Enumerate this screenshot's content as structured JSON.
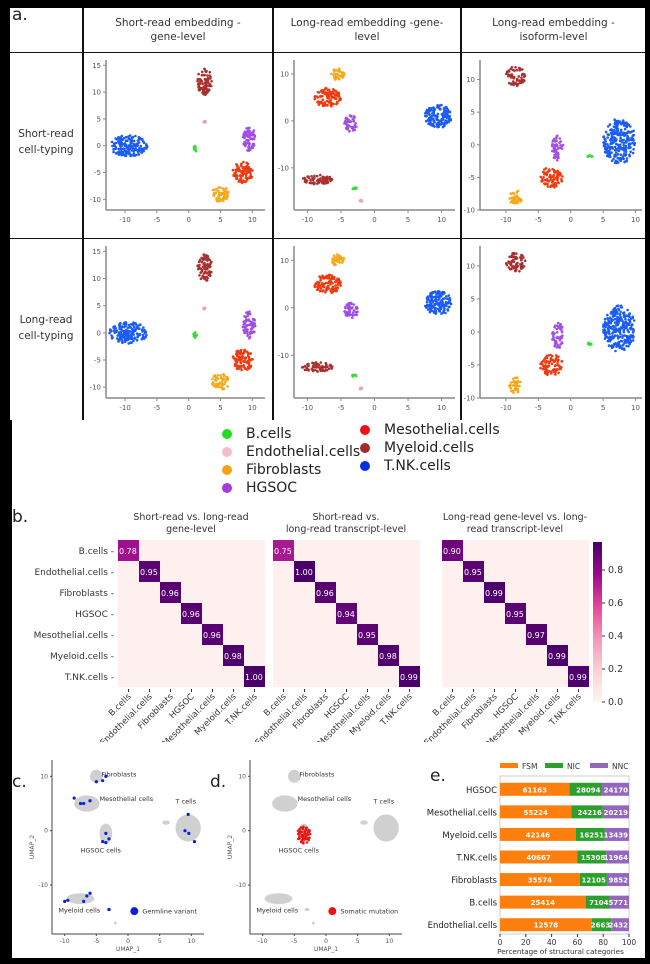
{
  "figure": {
    "panel_labels": {
      "a": "a.",
      "b": "b.",
      "c": "c.",
      "d": "d.",
      "e": "e."
    }
  },
  "section_a": {
    "column_headers": [
      {
        "line1": "Short-read embedding -",
        "line2": "gene-level"
      },
      {
        "line1": "Long-read embedding -gene-",
        "line2": "level"
      },
      {
        "line1": "Long-read embedding -",
        "line2": "isoform-level"
      }
    ],
    "row_headers": [
      {
        "line1": "Short-read",
        "line2": "cell-typing"
      },
      {
        "line1": "Long-read",
        "line2": "cell-typing"
      }
    ],
    "x_ticks": [
      "-10",
      "-5",
      "0",
      "5",
      "10"
    ],
    "y_ticks_col1": [
      "15",
      "10",
      "5",
      "0",
      "-5",
      "-10"
    ],
    "y_ticks_col2": [
      "10",
      "0",
      "-10"
    ],
    "y_ticks_col3": [
      "10",
      "5",
      "0",
      "-5",
      "-10"
    ],
    "legend": [
      {
        "label": "B.cells",
        "color": "#22dd22"
      },
      {
        "label": "Endothelial.cells",
        "color": "#f4bcc6"
      },
      {
        "label": "Fibroblasts",
        "color": "#f5a312"
      },
      {
        "label": "HGSOC",
        "color": "#a43ae0"
      },
      {
        "label": "Mesothelial.cells",
        "color": "#ee1111"
      },
      {
        "label": "Myeloid.cells",
        "color": "#a52a2a"
      },
      {
        "label": "T.NK.cells",
        "color": "#0a2ee8"
      }
    ]
  },
  "chart_data": [
    {
      "type": "scatter",
      "title": "Short-read embedding - gene-level / Short-read cell-typing",
      "xlim": [
        -13,
        12
      ],
      "ylim": [
        -12,
        16
      ],
      "clusters": [
        {
          "name": "T.NK.cells",
          "cx": -9.5,
          "cy": 0,
          "rx": 3,
          "ry": 2
        },
        {
          "name": "Myeloid.cells",
          "cx": 2.5,
          "cy": 12,
          "rx": 1.2,
          "ry": 2.5
        },
        {
          "name": "HGSOC",
          "cx": 9.5,
          "cy": 1.5,
          "rx": 1,
          "ry": 2.5
        },
        {
          "name": "Mesothelial.cells",
          "cx": 8.5,
          "cy": -5,
          "rx": 1.6,
          "ry": 2
        },
        {
          "name": "Fibroblasts",
          "cx": 5,
          "cy": -9,
          "rx": 1.4,
          "ry": 1.5
        },
        {
          "name": "B.cells",
          "cx": 1,
          "cy": -0.5,
          "rx": 0.3,
          "ry": 0.6
        },
        {
          "name": "Endothelial.cells",
          "cx": 2.5,
          "cy": 4.5,
          "rx": 0.2,
          "ry": 0.2
        }
      ]
    },
    {
      "type": "scatter",
      "title": "Long-read embedding - gene-level / Short-read cell-typing",
      "xlim": [
        -12,
        12
      ],
      "ylim": [
        -19,
        13
      ],
      "clusters": [
        {
          "name": "T.NK.cells",
          "cx": 9.5,
          "cy": 1,
          "rx": 2,
          "ry": 2.5
        },
        {
          "name": "Fibroblasts",
          "cx": -5.5,
          "cy": 10,
          "rx": 1,
          "ry": 1.3
        },
        {
          "name": "Mesothelial.cells",
          "cx": -7,
          "cy": 5,
          "rx": 2,
          "ry": 2
        },
        {
          "name": "HGSOC",
          "cx": -3.5,
          "cy": -0.5,
          "rx": 1,
          "ry": 1.8
        },
        {
          "name": "Myeloid.cells",
          "cx": -8.5,
          "cy": -12.5,
          "rx": 2.3,
          "ry": 1
        },
        {
          "name": "B.cells",
          "cx": -3,
          "cy": -14.3,
          "rx": 0.4,
          "ry": 0.3
        },
        {
          "name": "Endothelial.cells",
          "cx": -2,
          "cy": -17,
          "rx": 0.2,
          "ry": 0.2
        }
      ]
    },
    {
      "type": "scatter",
      "title": "Long-read embedding - isoform-level / Short-read cell-typing",
      "xlim": [
        -14,
        11
      ],
      "ylim": [
        -10,
        13
      ],
      "clusters": [
        {
          "name": "T.NK.cells",
          "cx": 7.5,
          "cy": 0.5,
          "rx": 2.5,
          "ry": 3.5
        },
        {
          "name": "Myeloid.cells",
          "cx": -8.5,
          "cy": 10.5,
          "rx": 1.5,
          "ry": 1.5
        },
        {
          "name": "HGSOC",
          "cx": -2,
          "cy": -0.5,
          "rx": 0.9,
          "ry": 2
        },
        {
          "name": "Mesothelial.cells",
          "cx": -3,
          "cy": -5,
          "rx": 1.8,
          "ry": 1.6
        },
        {
          "name": "Fibroblasts",
          "cx": -8.5,
          "cy": -8,
          "rx": 1,
          "ry": 1.3
        },
        {
          "name": "B.cells",
          "cx": 3,
          "cy": -1.8,
          "rx": 0.4,
          "ry": 0.2
        }
      ]
    },
    {
      "type": "heatmap",
      "title": "Short-read vs. long-read gene-level",
      "categories": [
        "B.cells",
        "Endothelial.cells",
        "Fibroblasts",
        "HGSOC",
        "Mesothelial.cells",
        "Myeloid.cells",
        "T.NK.cells"
      ],
      "diagonal": [
        0.78,
        0.95,
        0.96,
        0.96,
        0.96,
        0.98,
        1.0
      ],
      "diagonal_labels": [
        "0.78",
        "0.95",
        "0.96",
        "0.96",
        "0.96",
        "0.98",
        "1.00"
      ]
    },
    {
      "type": "heatmap",
      "title": "Short-read vs. long-read transcript-level",
      "categories": [
        "B.cells",
        "Endothelial.cells",
        "Fibroblasts",
        "HGSOC",
        "Mesothelial.cells",
        "Myeloid.cells",
        "T.NK.cells"
      ],
      "diagonal": [
        0.75,
        1.0,
        0.96,
        0.94,
        0.95,
        0.98,
        0.99
      ],
      "diagonal_labels": [
        "0.75",
        "1.00",
        "0.96",
        "0.94",
        "0.95",
        "0.98",
        "0.99"
      ]
    },
    {
      "type": "heatmap",
      "title": "Long-read gene-level vs. long-read transcript-level",
      "categories": [
        "B.cells",
        "Endothelial.cells",
        "Fibroblasts",
        "HGSOC",
        "Mesothelial.cells",
        "Myeloid.cells",
        "T.NK.cells"
      ],
      "diagonal": [
        0.9,
        0.95,
        0.99,
        0.95,
        0.97,
        0.99,
        0.99
      ],
      "diagonal_labels": [
        "0.90",
        "0.95",
        "0.99",
        "0.95",
        "0.97",
        "0.99",
        "0.99"
      ]
    },
    {
      "type": "bar",
      "stacked": true,
      "orientation": "horizontal",
      "categories": [
        "HGSOC",
        "Mesothelial.cells",
        "Myeloid.cells",
        "T.NK.cells",
        "Fibroblasts",
        "B.cells",
        "Endothelial.cells"
      ],
      "series": [
        {
          "name": "FSM",
          "color": "#ff7f0e",
          "values": [
            61163,
            55224,
            42146,
            40667,
            35574,
            25414,
            12578
          ]
        },
        {
          "name": "NIC",
          "color": "#2ca02c",
          "values": [
            28094,
            24216,
            16251,
            15308,
            12105,
            7104,
            2663
          ]
        },
        {
          "name": "NNC",
          "color": "#9467bd",
          "values": [
            24170,
            20219,
            13439,
            11964,
            9852,
            5771,
            2432
          ]
        }
      ],
      "xlabel": "Percentage of structural categories",
      "x_ticks": [
        "0",
        "20",
        "40",
        "60",
        "80",
        "100"
      ],
      "xlim": [
        0,
        100
      ],
      "legend": "top"
    }
  ],
  "section_b": {
    "titles": [
      {
        "line1": "Short-read vs. long-read",
        "line2": "gene-level"
      },
      {
        "line1": "Short-read vs.",
        "line2": "long-read transcript-level"
      },
      {
        "line1": "Long-read  gene-level  vs.  long-",
        "line2": "read transcript-level"
      }
    ],
    "colorbar_ticks": [
      "0.8",
      "0.6",
      "0.4",
      "0.2",
      "0.0"
    ]
  },
  "section_c": {
    "xlabel": "UMAP_1",
    "ylabel": "UMAP_2",
    "x_ticks": [
      "-10",
      "-5",
      "0",
      "5",
      "10"
    ],
    "y_ticks": [
      "10",
      "0",
      "-10"
    ],
    "annotations": [
      "Fibroblasts",
      "Mesothelial cells",
      "T cells",
      "HGSOC cells",
      "Myeloid cells"
    ],
    "legend_label": "Germline variant",
    "legend_color": "#0a1ee0"
  },
  "section_d": {
    "xlabel": "UMAP_1",
    "ylabel": "UMAP_2",
    "x_ticks": [
      "-10",
      "-5",
      "0",
      "5",
      "10"
    ],
    "y_ticks": [
      "10",
      "0",
      "-10"
    ],
    "annotations": [
      "Fibroblasts",
      "Mesothelial cells",
      "T cells",
      "HGSOC cells",
      "Myeloid cells"
    ],
    "legend_label": "Somatic mutation",
    "legend_color": "#ee1111"
  }
}
